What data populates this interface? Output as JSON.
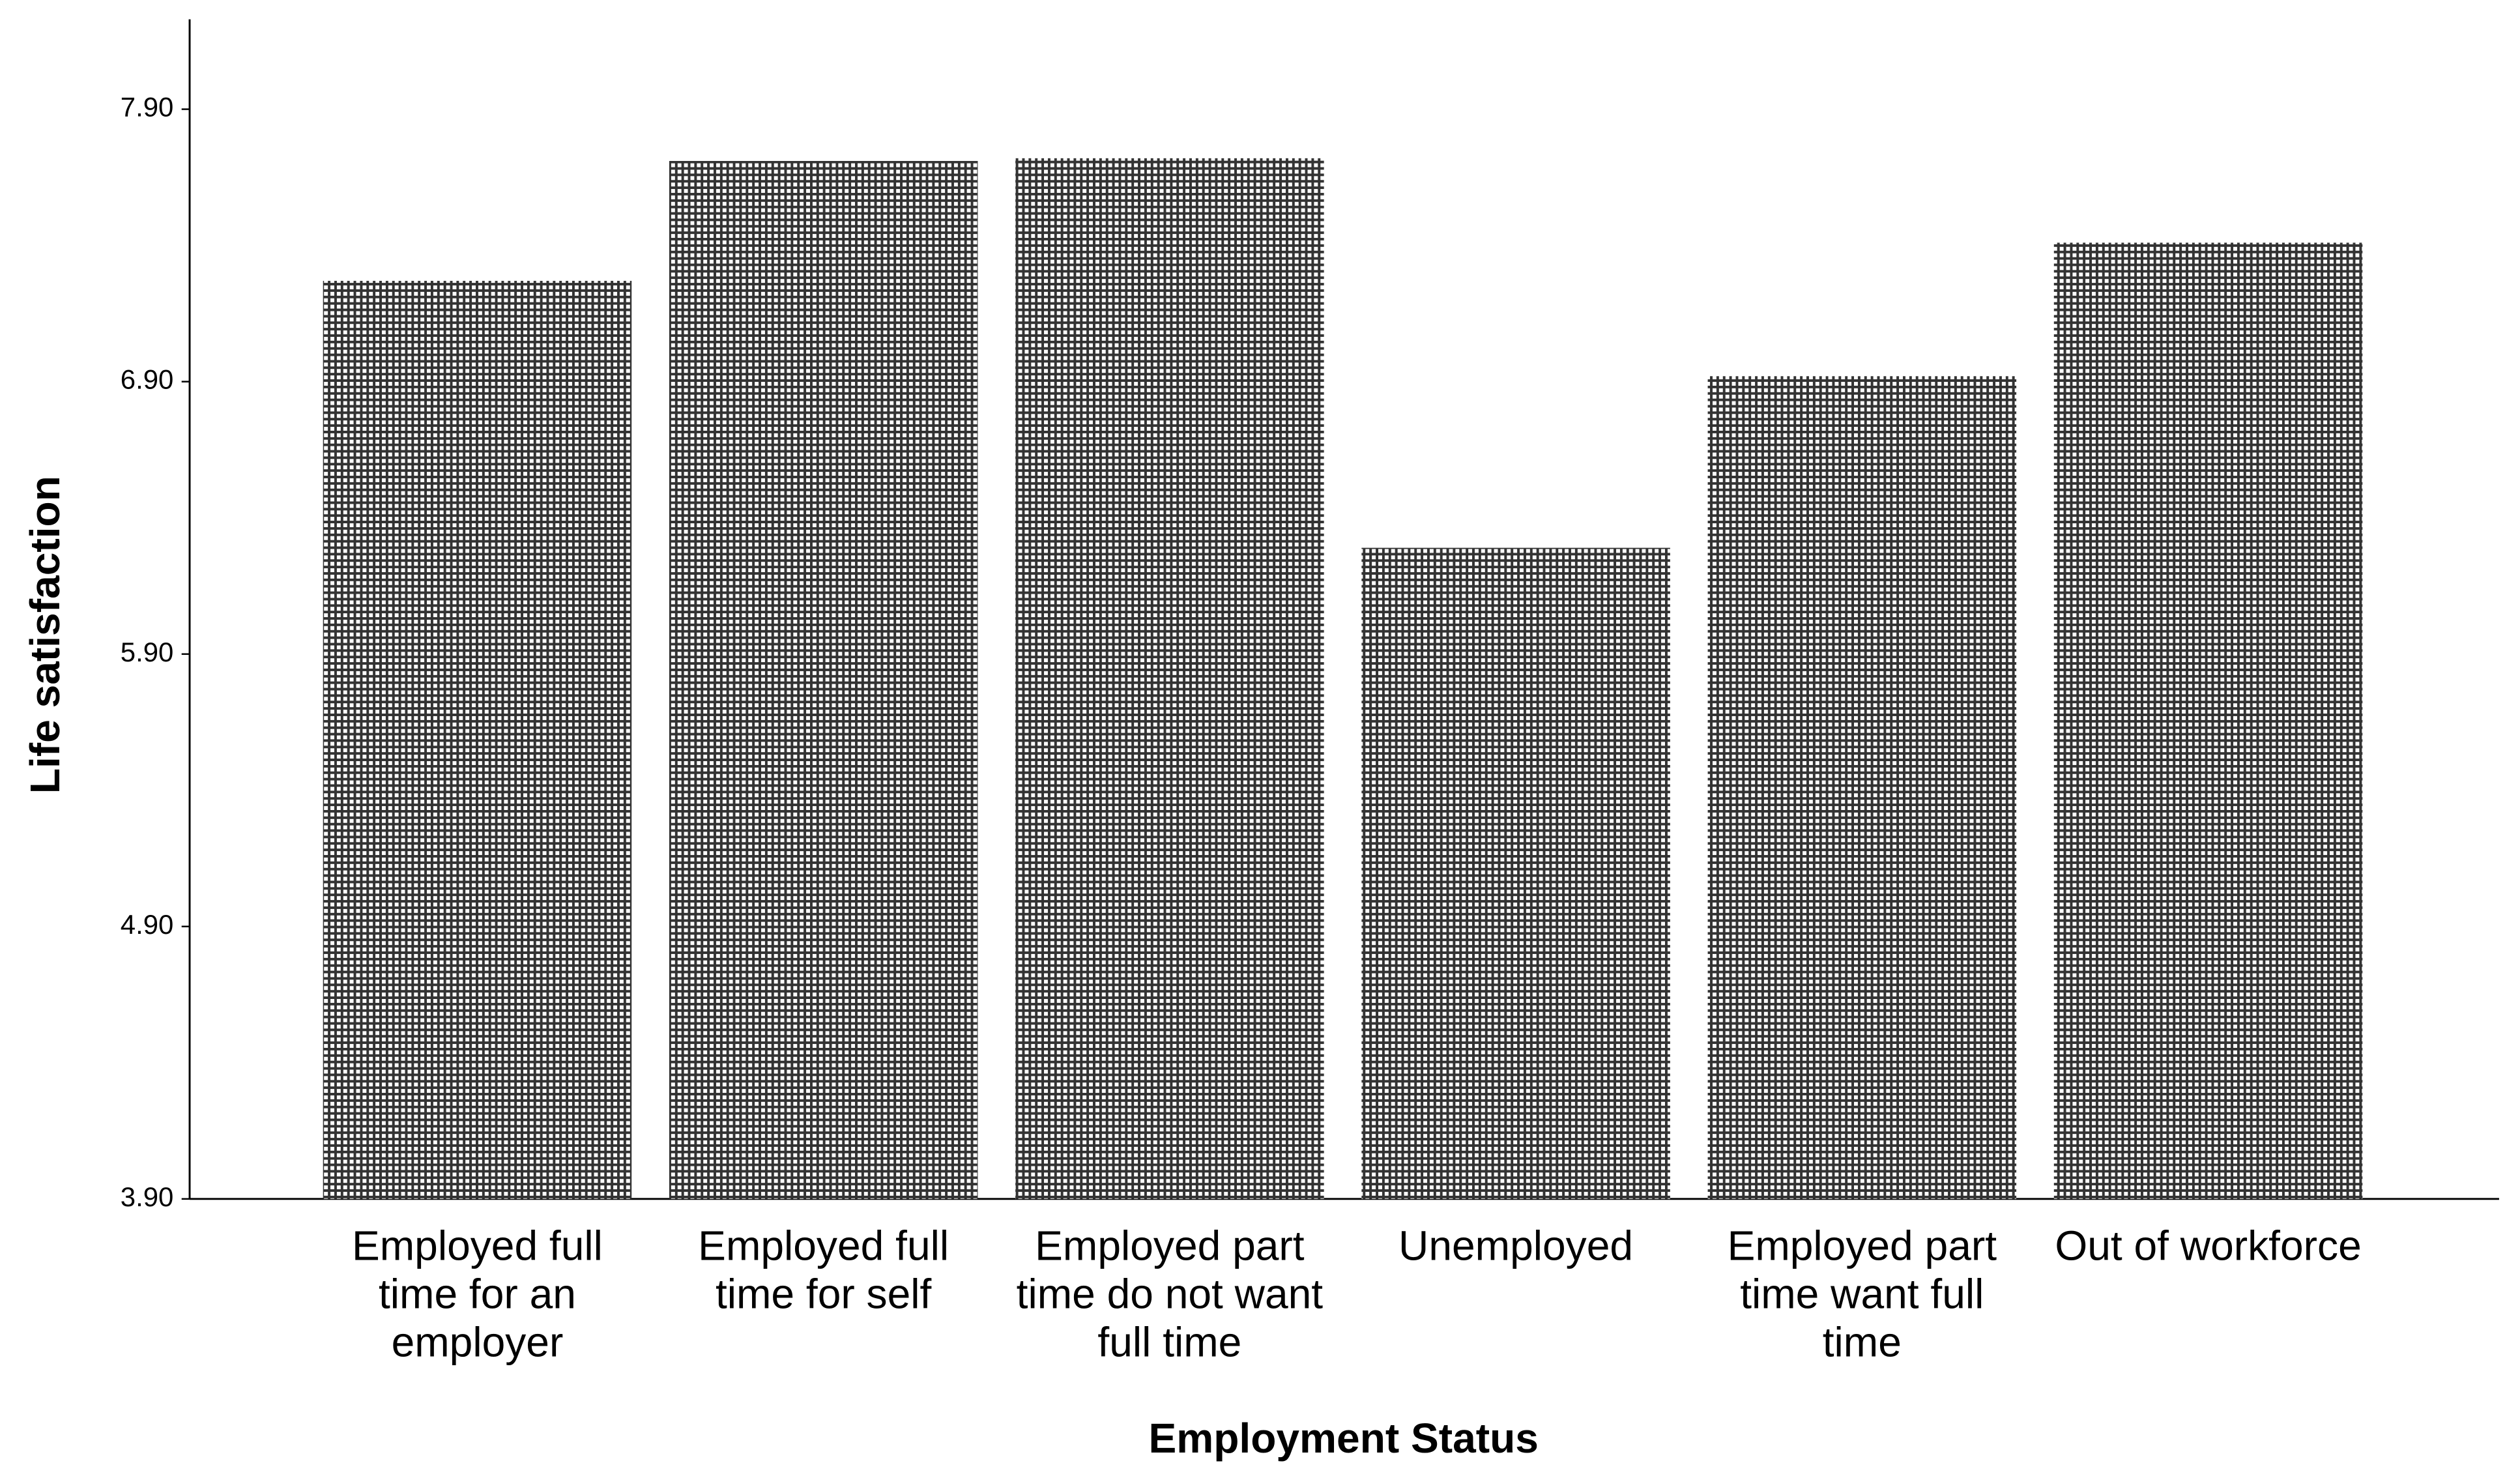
{
  "chart_data": {
    "type": "bar",
    "x_label": "Employment Status",
    "y_label": "Life satisfaction",
    "categories": [
      "Employed full time for an employer",
      "Employed full time for self",
      "Employed part time do not want full time",
      "Unemployed",
      "Employed part time want full time",
      "Out of workforce"
    ],
    "values": [
      7.27,
      7.71,
      7.72,
      6.29,
      6.92,
      7.41
    ],
    "color": "#333333",
    "ylim": [
      3.9,
      8.23
    ],
    "yticks": [
      {
        "value": 3.9,
        "label": "3.90"
      },
      {
        "value": 4.9,
        "label": "4.90"
      },
      {
        "value": 5.9,
        "label": "5.90"
      },
      {
        "value": 6.9,
        "label": "6.90"
      },
      {
        "value": 7.9,
        "label": "7.90"
      }
    ],
    "grid": false
  }
}
